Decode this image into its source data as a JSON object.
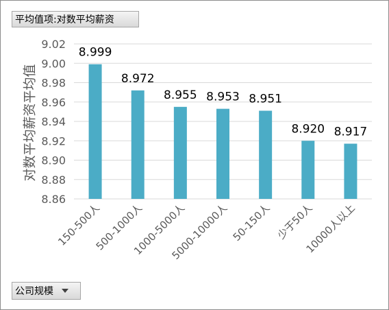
{
  "value_field": {
    "label": "平均值项:对数平均薪资"
  },
  "axis_field": {
    "label": "公司规模",
    "icon": "dropdown-arrow-icon"
  },
  "colors": {
    "bar": "#4bacc6",
    "grid": "#d9d9d9",
    "text": "#595959",
    "label": "#000000"
  },
  "chart_data": {
    "type": "bar",
    "title": "",
    "xlabel": "",
    "ylabel": "对数平均薪资平均值",
    "categories": [
      "150-500人",
      "500-1000人",
      "1000-5000人",
      "5000-10000人",
      "50-150人",
      "少于50人",
      "10000人以上"
    ],
    "values": [
      8.999,
      8.972,
      8.955,
      8.953,
      8.951,
      8.92,
      8.917
    ],
    "data_labels": [
      "8.999",
      "8.972",
      "8.955",
      "8.953",
      "8.951",
      "8.920",
      "8.917"
    ],
    "ylim": [
      8.86,
      9.02
    ],
    "yticks": [
      "8.86",
      "8.88",
      "8.90",
      "8.92",
      "8.94",
      "8.96",
      "8.98",
      "9.00",
      "9.02"
    ],
    "grid": true,
    "legend": "none"
  }
}
